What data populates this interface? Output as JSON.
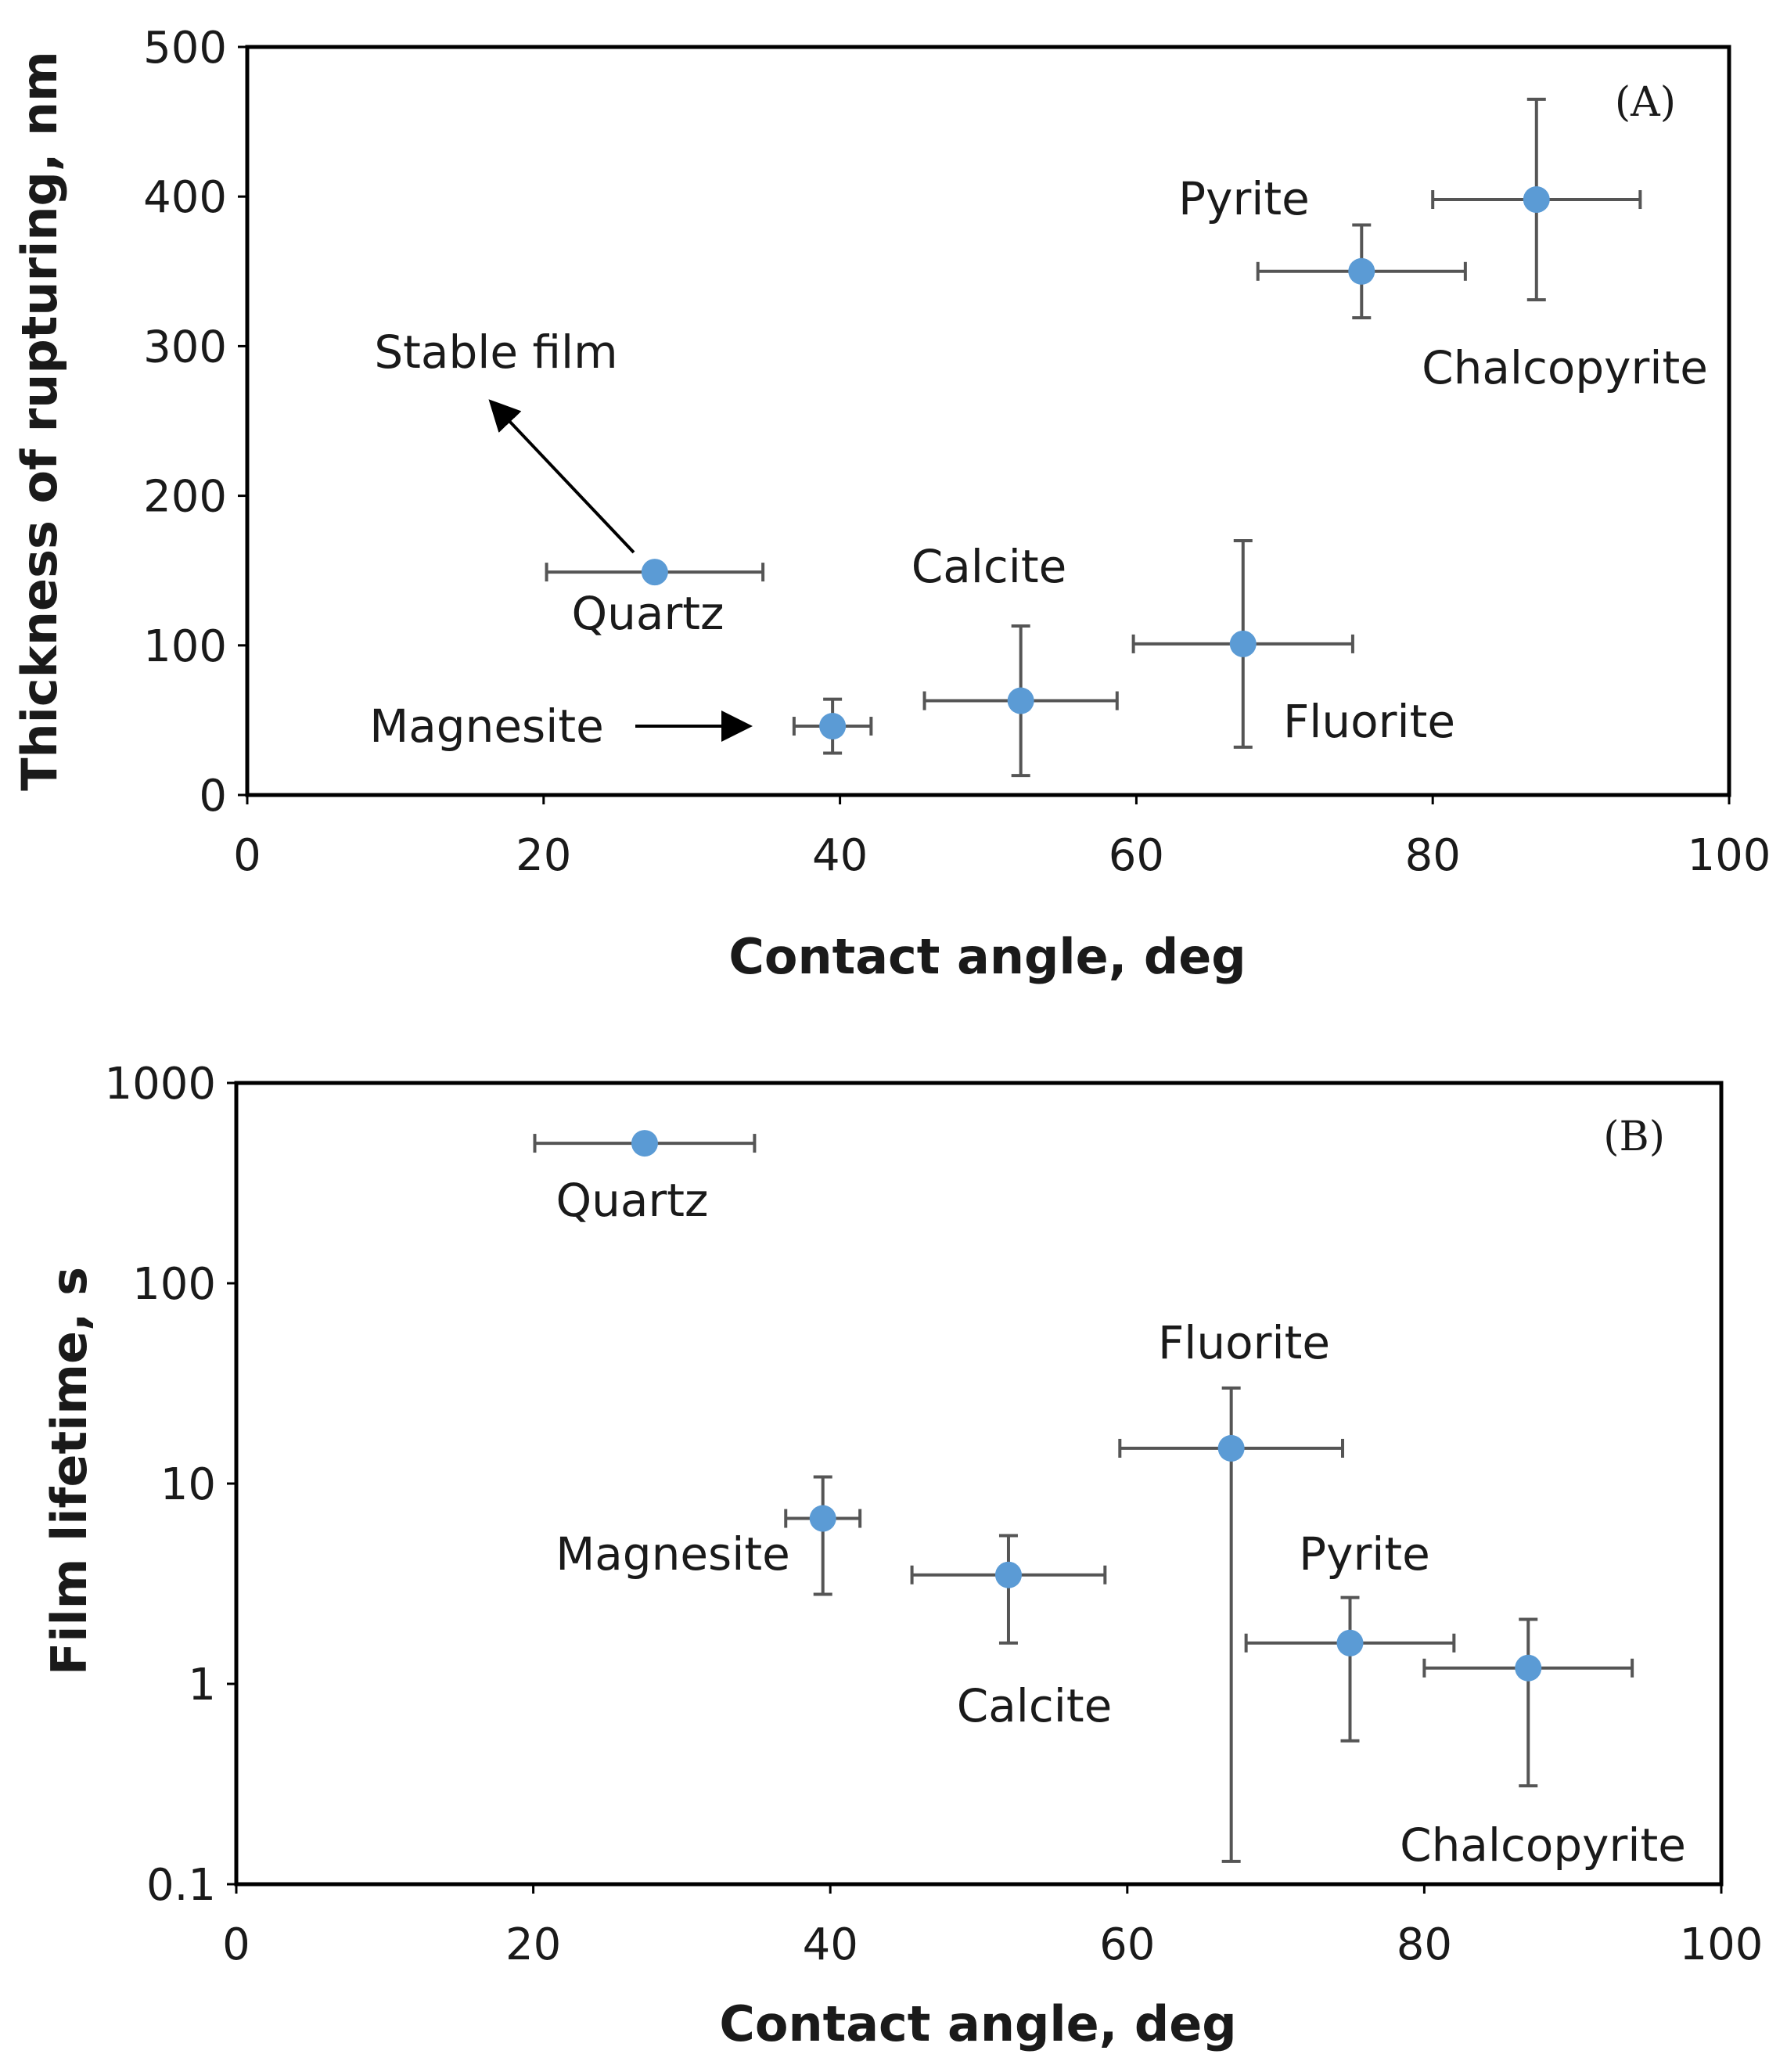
{
  "chart_data": [
    {
      "type": "scatter",
      "panel_label": "(A)",
      "xlabel": "Contact angle, deg",
      "ylabel": "Thickness of rupturing, nm",
      "xlim": [
        0,
        100
      ],
      "ylim": [
        0,
        500
      ],
      "xticks": [
        "0",
        "20",
        "40",
        "60",
        "80",
        "100"
      ],
      "yticks": [
        "0",
        "100",
        "200",
        "300",
        "400",
        "500"
      ],
      "marker_color": "#5B9BD5",
      "errorbar_color": "#555555",
      "points": [
        {
          "name": "Quartz",
          "x": 27.5,
          "y": 149,
          "xerr": 7.3,
          "yerr": 0
        },
        {
          "name": "Magnesite",
          "x": 39.5,
          "y": 46,
          "xerr": 2.6,
          "yerr": 18
        },
        {
          "name": "Calcite",
          "x": 52.2,
          "y": 63,
          "xerr": 6.5,
          "yerr": 50
        },
        {
          "name": "Fluorite",
          "x": 67.2,
          "y": 101,
          "xerr": 7.4,
          "yerr": 69
        },
        {
          "name": "Pyrite",
          "x": 75.2,
          "y": 350,
          "xerr": 7,
          "yerr": 31
        },
        {
          "name": "Chalcopyrite",
          "x": 87,
          "y": 398,
          "xerr": 7,
          "yerr": 67
        }
      ],
      "annotations": [
        {
          "text": "Stable film"
        },
        {
          "text": "Magnesite"
        }
      ]
    },
    {
      "type": "scatter",
      "panel_label": "(B)",
      "xlabel": "Contact angle, deg",
      "ylabel": "Film lifetime, s",
      "yscale": "log",
      "xlim": [
        0,
        100
      ],
      "ylim": [
        0.1,
        1000
      ],
      "xticks": [
        "0",
        "20",
        "40",
        "60",
        "80",
        "100"
      ],
      "yticks": [
        "0.1",
        "1",
        "10",
        "100",
        "1000"
      ],
      "marker_color": "#5B9BD5",
      "errorbar_color": "#555555",
      "points": [
        {
          "name": "Quartz",
          "x": 27.5,
          "y": 500,
          "xerr": 7.4,
          "ylow": 500,
          "yhigh": 500
        },
        {
          "name": "Magnesite",
          "x": 39.5,
          "y": 6.7,
          "xerr": 2.5,
          "ylow": 2.8,
          "yhigh": 10.8
        },
        {
          "name": "Calcite",
          "x": 52,
          "y": 3.5,
          "xerr": 6.5,
          "ylow": 1.6,
          "yhigh": 5.5
        },
        {
          "name": "Fluorite",
          "x": 67,
          "y": 15,
          "xerr": 7.5,
          "ylow": 0.13,
          "yhigh": 30
        },
        {
          "name": "Pyrite",
          "x": 75,
          "y": 1.6,
          "xerr": 7,
          "ylow": 0.52,
          "yhigh": 2.7
        },
        {
          "name": "Chalcopyrite",
          "x": 87,
          "y": 1.2,
          "xerr": 7,
          "ylow": 0.31,
          "yhigh": 2.1
        }
      ]
    }
  ]
}
